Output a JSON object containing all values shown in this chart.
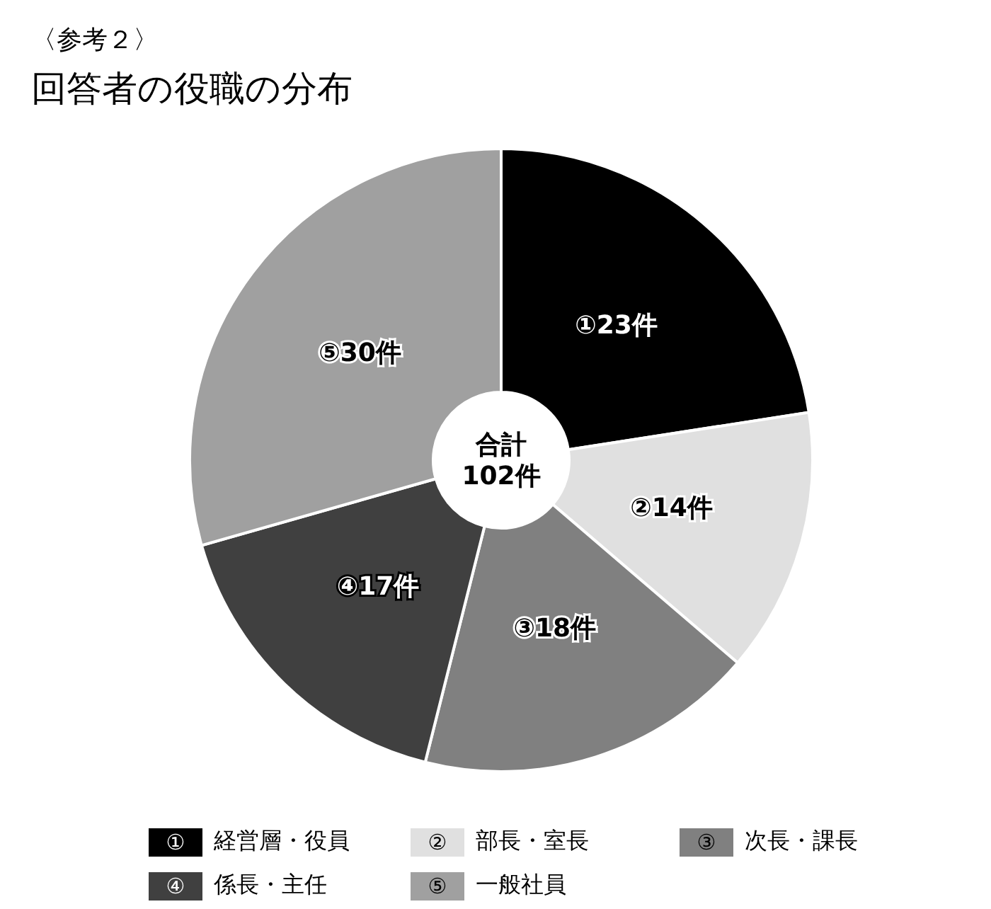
{
  "chart_data": {
    "type": "donut",
    "title": "〈参考２〉",
    "subtitle": "回答者の役職の分布",
    "categories": [
      "経営層・役員",
      "部長・室長",
      "次長・課長",
      "係長・主任",
      "一般社員"
    ],
    "values": [
      23,
      14,
      18,
      17,
      30
    ],
    "colors": [
      "#000000",
      "#e0e0e0",
      "#808080",
      "#404040",
      "#a0a0a0"
    ],
    "value_labels": [
      "①23件",
      "②14件",
      "③18件",
      "④17件",
      "⑤30件"
    ],
    "annotations": [
      "合計\n102件",
      "①",
      "②",
      "③",
      "④",
      "⑤"
    ],
    "legend": "bottom"
  }
}
